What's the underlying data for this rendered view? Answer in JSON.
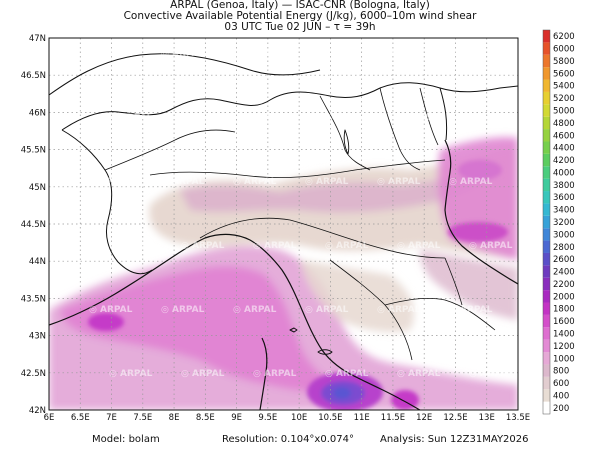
{
  "header": {
    "line1": "ARPAL (Genoa, Italy)  —  ISAC-CNR (Bologna, Italy)",
    "line2": "Convective Available Potential Energy (J/kg), 6000–10m wind shear",
    "line3": "03 UTC Tue 02 JUN  –  τ = 39h"
  },
  "watermark": "ARPAL",
  "map": {
    "lon_ticks": [
      "6E",
      "6.5E",
      "7E",
      "7.5E",
      "8E",
      "8.5E",
      "9E",
      "9.5E",
      "10E",
      "10.5E",
      "11E",
      "11.5E",
      "12E",
      "12.5E",
      "13E",
      "13.5E"
    ],
    "lat_ticks": [
      "42N",
      "42.5N",
      "43N",
      "43.5N",
      "44N",
      "44.5N",
      "45N",
      "45.5N",
      "46N",
      "46.5N",
      "47N"
    ]
  },
  "legend": {
    "values": [
      "200",
      "400",
      "600",
      "800",
      "1000",
      "1200",
      "1400",
      "1600",
      "1800",
      "2000",
      "2200",
      "2400",
      "2600",
      "2800",
      "3000",
      "3200",
      "3400",
      "3600",
      "3800",
      "4000",
      "4200",
      "4400",
      "4600",
      "4800",
      "5000",
      "5200",
      "5400",
      "5600",
      "5800",
      "6000",
      "6200"
    ],
    "colors": [
      "#ffffff",
      "#e8ddd4",
      "#e2cdd0",
      "#dcb8cc",
      "#e6a9d6",
      "#e38bd4",
      "#de6fd0",
      "#d44fca",
      "#c334c4",
      "#a92ac0",
      "#8a2ebd",
      "#6e3bbf",
      "#5a4fc8",
      "#4b68d2",
      "#3f86d8",
      "#37a2d8",
      "#35b8d2",
      "#38c6bb",
      "#3fcb9d",
      "#4bcd7e",
      "#5ccd60",
      "#76cf4c",
      "#95d23f",
      "#b4d637",
      "#d2d933",
      "#e7cf31",
      "#f0b62f",
      "#f0972d",
      "#ec762b",
      "#e65229",
      "#d92f2a"
    ]
  },
  "footer": {
    "model": "Model: bolam",
    "resolution": "Resolution: 0.104°x0.074°",
    "analysis": "Analysis: Sun 12Z31MAY2026"
  }
}
